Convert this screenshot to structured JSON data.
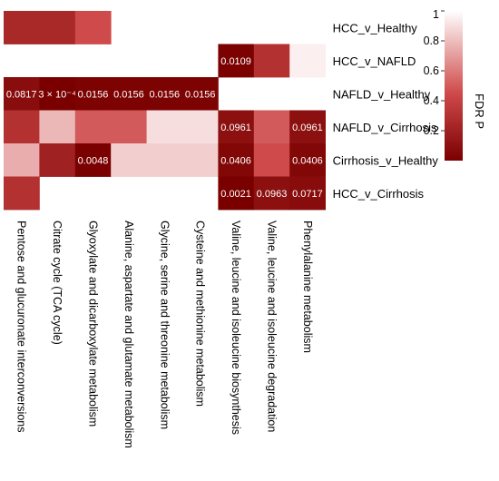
{
  "chart_data": {
    "type": "heatmap",
    "rows": [
      "HCC_v_Healthy",
      "HCC_v_NAFLD",
      "NAFLD_v_Healthy",
      "NAFLD_v_Cirrhosis",
      "Cirrhosis_v_Healthy",
      "HCC_v_Cirrhosis"
    ],
    "columns": [
      "Pentose and glucuronate interconversions",
      "Citrate cycle (TCA cycle)",
      "Glyoxylate and dicarboxylate metabolism",
      "Alanine, aspartate and glutamate metabolism",
      "Glycine, serine and threonine metabolism",
      "Cysteine and methionine metabolism",
      "Valine, leucine and isoleucine biosynthesis",
      "Valine, leucine and isoleucine degradation",
      "Phenylalanine metabolism"
    ],
    "values": [
      [
        0.25,
        0.25,
        0.45,
        null,
        null,
        null,
        null,
        null,
        null
      ],
      [
        null,
        null,
        null,
        null,
        null,
        null,
        0.0109,
        0.3,
        0.95
      ],
      [
        0.0817,
        0.0003,
        0.0156,
        0.0156,
        0.0156,
        0.0156,
        null,
        null,
        null
      ],
      [
        0.3,
        0.78,
        0.5,
        0.5,
        0.9,
        0.9,
        0.0961,
        0.5,
        0.0961
      ],
      [
        0.75,
        0.2,
        0.0048,
        0.85,
        0.85,
        0.85,
        0.0406,
        0.45,
        0.0406
      ],
      [
        0.3,
        null,
        null,
        null,
        null,
        null,
        0.0021,
        0.0963,
        0.0717
      ]
    ],
    "cell_labels": [
      [
        "",
        "",
        "",
        "",
        "",
        "",
        "",
        "",
        ""
      ],
      [
        "",
        "",
        "",
        "",
        "",
        "",
        "0.0109",
        "",
        ""
      ],
      [
        "0.0817",
        "3 × 10⁻⁴",
        "0.0156",
        "0.0156",
        "0.0156",
        "0.0156",
        "",
        "",
        ""
      ],
      [
        "",
        "",
        "",
        "",
        "",
        "",
        "0.0961",
        "",
        "0.0961"
      ],
      [
        "",
        "",
        "0.0048",
        "",
        "",
        "",
        "0.0406",
        "",
        "0.0406"
      ],
      [
        "",
        "",
        "",
        "",
        "",
        "",
        "0.0021",
        "0.0963",
        "0.0717"
      ]
    ],
    "colorbar": {
      "title": "FDR P",
      "range": [
        0,
        1
      ],
      "ticks": [
        "1",
        "0.8",
        "0.6",
        "0.4",
        "0.2"
      ],
      "tick_values": [
        1,
        0.8,
        0.6,
        0.4,
        0.2
      ],
      "low_color": "#7a0000",
      "high_color": "#ffffff"
    },
    "legend_position": "top-right",
    "grid": false
  }
}
